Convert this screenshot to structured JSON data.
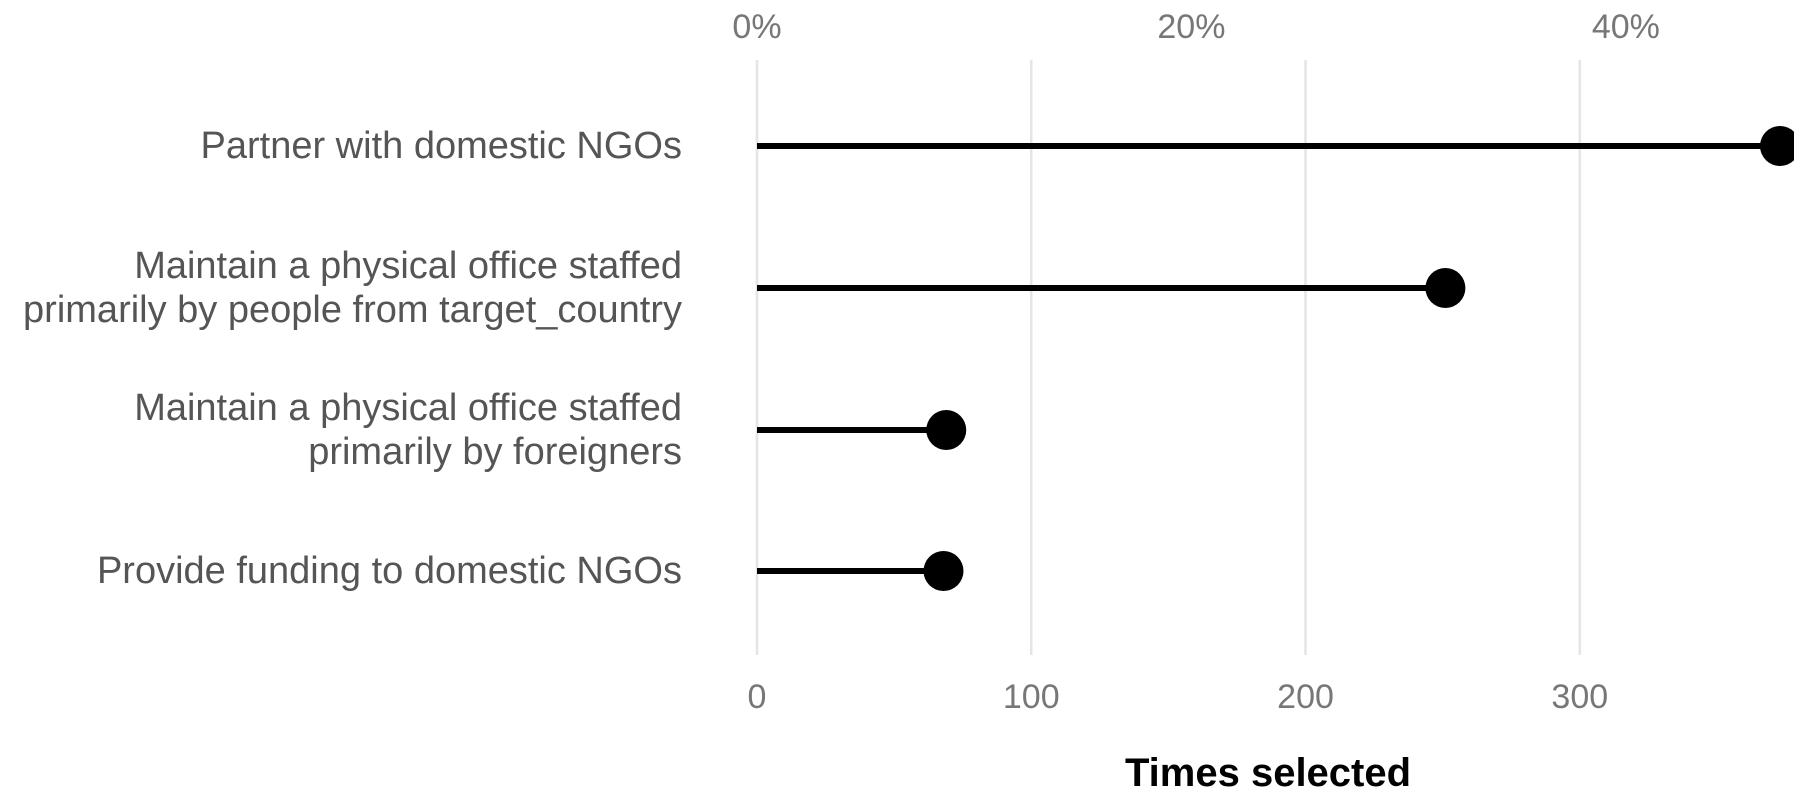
{
  "chart_data": {
    "type": "lollipop",
    "categories": [
      [
        "Partner with domestic NGOs"
      ],
      [
        "Maintain a physical office staffed",
        "primarily by people from target_country"
      ],
      [
        "Maintain a physical office staffed",
        "primarily by foreigners"
      ],
      [
        "Provide funding to domestic NGOs"
      ]
    ],
    "values": [
      373,
      251,
      69,
      68
    ],
    "xlabel": "Times selected",
    "xlim": [
      0,
      373
    ],
    "x_ticks": [
      0,
      100,
      200,
      300
    ],
    "secondary_axis": {
      "position": "top",
      "ticks": [
        "0%",
        "20%",
        "40%"
      ],
      "values_fraction": [
        0,
        0.2,
        0.4
      ]
    },
    "grid": true,
    "colors": {
      "mark": "#000000",
      "grid": "#e5e5e5",
      "category_text": "#555555",
      "tick_text": "#777777"
    }
  }
}
